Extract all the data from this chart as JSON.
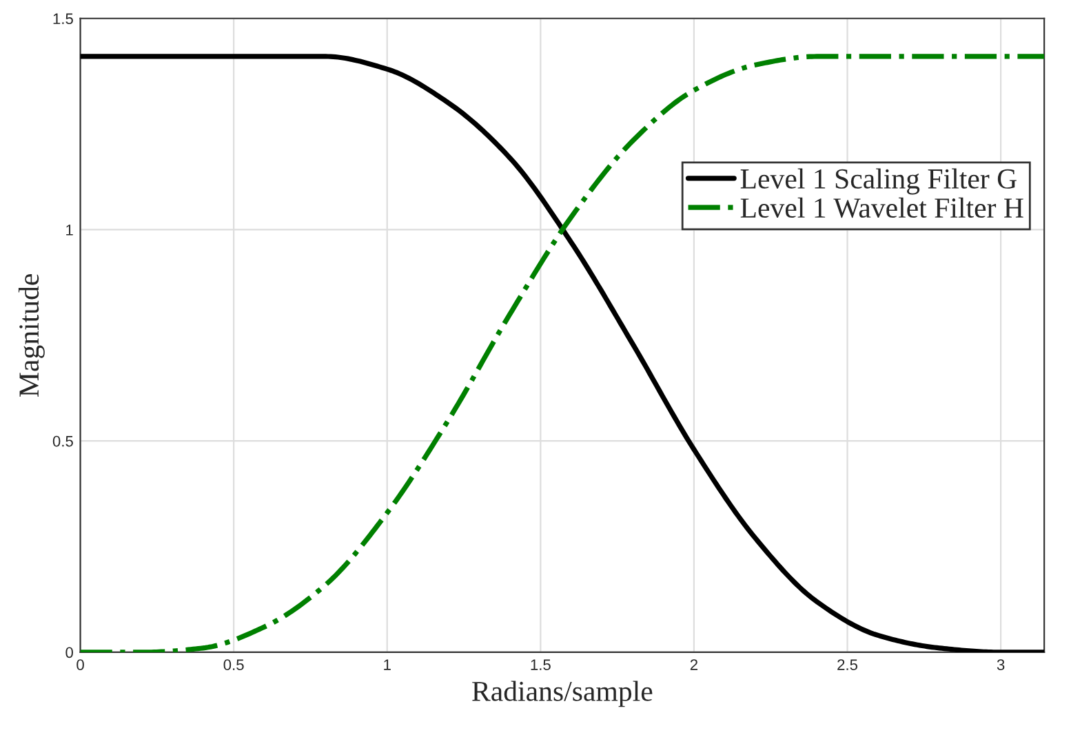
{
  "chart_data": {
    "type": "line",
    "xlabel": "Radians/sample",
    "ylabel": "Magnitude",
    "x": [
      0,
      0.2,
      0.4,
      0.6,
      0.8,
      1.0,
      1.2,
      1.4,
      1.6,
      1.8,
      2.0,
      2.2,
      2.4,
      2.6,
      2.8,
      3.0,
      3.1416
    ],
    "series": [
      {
        "name": "Level 1 Scaling Filter G",
        "color": "#000000",
        "line_style": "solid",
        "values": [
          1.41,
          1.41,
          1.41,
          1.41,
          1.41,
          1.38,
          1.3,
          1.17,
          0.97,
          0.73,
          0.48,
          0.27,
          0.12,
          0.04,
          0.01,
          0,
          0
        ]
      },
      {
        "name": "Level 1 Wavelet Filter H",
        "color": "#008000",
        "line_style": "dashdot",
        "values": [
          0,
          0,
          0.01,
          0.06,
          0.16,
          0.33,
          0.55,
          0.8,
          1.03,
          1.21,
          1.33,
          1.39,
          1.41,
          1.41,
          1.41,
          1.41,
          1.41
        ]
      }
    ],
    "xlim": [
      0,
      3.1416
    ],
    "ylim": [
      0,
      1.5
    ],
    "xticks": [
      0,
      0.5,
      1,
      1.5,
      2,
      2.5,
      3
    ],
    "yticks": [
      0,
      0.5,
      1,
      1.5
    ],
    "grid": true,
    "legend": "right",
    "marker": "none"
  }
}
